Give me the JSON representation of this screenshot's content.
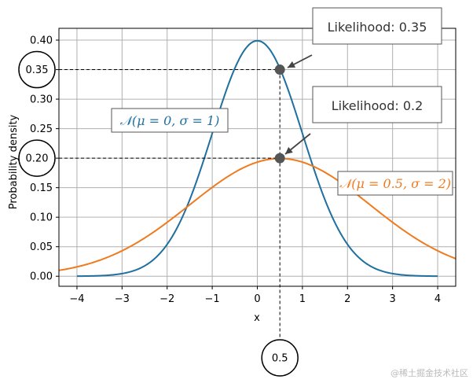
{
  "chart_data": {
    "type": "line",
    "xlabel": "x",
    "ylabel": "Probability density",
    "xlim": [
      -4.4,
      4.4
    ],
    "ylim": [
      -0.017,
      0.42
    ],
    "x_ticks": [
      -4,
      -3,
      -2,
      -1,
      0,
      1,
      2,
      3,
      4
    ],
    "x_tick_labels": [
      "−4",
      "−3",
      "−2",
      "−1",
      "0",
      "1",
      "2",
      "3",
      "4"
    ],
    "y_ticks": [
      0.0,
      0.05,
      0.1,
      0.15,
      0.2,
      0.25,
      0.3,
      0.35,
      0.4
    ],
    "y_tick_labels": [
      "0.00",
      "0.05",
      "0.10",
      "0.15",
      "0.20",
      "0.25",
      "0.30",
      "0.35",
      "0.40"
    ],
    "grid": true,
    "series": [
      {
        "name": "𝒩(μ = 0, σ = 1)",
        "color": "#1f6f9f",
        "mu": 0,
        "sigma": 1,
        "x": [
          -4,
          -3.5,
          -3,
          -2.5,
          -2,
          -1.5,
          -1,
          -0.5,
          0,
          0.5,
          1,
          1.5,
          2,
          2.5,
          3,
          3.5,
          4
        ],
        "y": [
          0.0001,
          0.0009,
          0.0044,
          0.0175,
          0.054,
          0.1295,
          0.242,
          0.3521,
          0.3989,
          0.3521,
          0.242,
          0.1295,
          0.054,
          0.0175,
          0.0044,
          0.0009,
          0.0001
        ]
      },
      {
        "name": "𝒩(μ = 0.5, σ = 2)",
        "color": "#f07a1e",
        "mu": 0.5,
        "sigma": 2,
        "x": [
          -4.4,
          -4,
          -3,
          -2,
          -1,
          0,
          0.5,
          1,
          2,
          3,
          4,
          4.4
        ],
        "y": [
          0.0099,
          0.0158,
          0.0431,
          0.0913,
          0.1506,
          0.1933,
          0.1995,
          0.1933,
          0.1506,
          0.0913,
          0.0431,
          0.0299
        ]
      }
    ],
    "highlight": {
      "x": 0.5,
      "x_label": "0.5",
      "points": [
        {
          "y": 0.35,
          "y_label": "0.35",
          "callout": "Likelihood: 0.35"
        },
        {
          "y": 0.2,
          "y_label": "0.20",
          "callout": "Likelihood: 0.2"
        }
      ]
    }
  },
  "watermark": "@稀土掘金技术社区"
}
